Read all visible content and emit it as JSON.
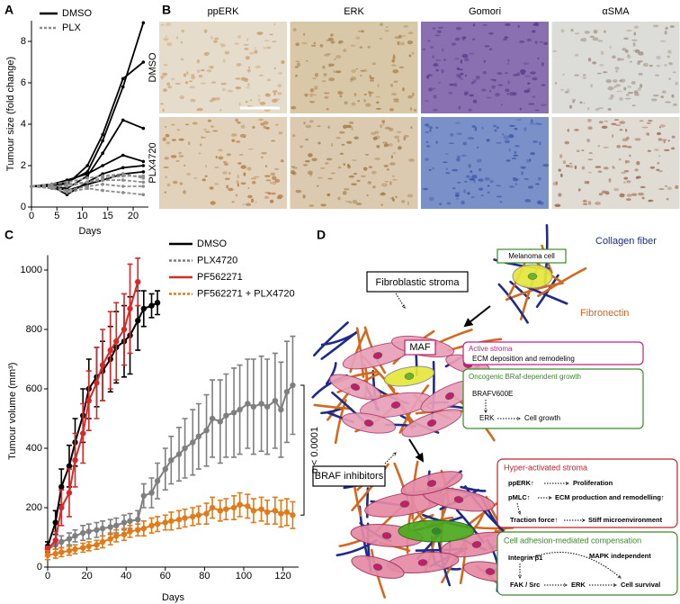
{
  "chart_data": [
    {
      "panel": "A",
      "type": "line",
      "xlabel": "Days",
      "ylabel": "Tumour size (fold change)",
      "x": [
        0,
        4,
        7,
        11,
        14,
        18,
        22
      ],
      "xlim": [
        0,
        23
      ],
      "xticks": [
        0,
        5,
        10,
        15,
        20
      ],
      "ylim": [
        0,
        9
      ],
      "yticks": [
        0,
        2,
        4,
        6,
        8
      ],
      "series": [
        {
          "name": "DMSO",
          "color": "#000000",
          "dashed": false,
          "lines": [
            [
              1,
              1,
              1.2,
              1.7,
              3.2,
              5.8,
              8.9
            ],
            [
              1,
              1.1,
              1.1,
              2.0,
              3.5,
              6.2,
              7.0
            ],
            [
              1,
              1,
              0.9,
              1.5,
              2.6,
              4.2,
              3.8
            ],
            [
              1,
              1.1,
              1.3,
              1.6,
              2.0,
              2.5,
              2.2
            ],
            [
              1,
              1,
              0.6,
              1.2,
              1.6,
              1.9,
              2.0
            ],
            [
              1,
              1,
              0.8,
              1.1,
              1.3,
              1.6,
              1.7
            ]
          ]
        },
        {
          "name": "PLX",
          "color": "#8c8c8c",
          "dashed": true,
          "lines": [
            [
              1,
              1,
              1,
              1.2,
              1.4,
              1.5,
              1.5
            ],
            [
              1,
              0.9,
              1.1,
              1.2,
              1.3,
              1.3,
              1.2
            ],
            [
              1,
              1,
              0.8,
              1,
              1.1,
              1.0,
              1.0
            ],
            [
              1,
              0.9,
              0.7,
              0.9,
              0.8,
              0.7,
              0.6
            ],
            [
              1,
              1.1,
              1.2,
              1.4,
              1.5,
              1.6,
              1.4
            ]
          ]
        }
      ]
    },
    {
      "panel": "C",
      "type": "line",
      "xlabel": "Days",
      "ylabel": "Tumour volume (mm³)",
      "annotation": "p < 0.0001",
      "xlim": [
        0,
        128
      ],
      "xticks": [
        0,
        20,
        40,
        60,
        80,
        100,
        120
      ],
      "ylim": [
        0,
        1050
      ],
      "yticks": [
        0,
        200,
        400,
        600,
        800,
        1000
      ],
      "series": [
        {
          "name": "DMSO",
          "color": "#000000",
          "dashed": false,
          "x": [
            0,
            4,
            7,
            11,
            14,
            18,
            21,
            25,
            28,
            32,
            35,
            39,
            42,
            46,
            49,
            53,
            56
          ],
          "values": [
            70,
            150,
            270,
            340,
            420,
            510,
            600,
            640,
            660,
            700,
            740,
            760,
            780,
            830,
            870,
            880,
            890
          ],
          "errors": [
            15,
            40,
            60,
            70,
            80,
            90,
            100,
            100,
            100,
            110,
            120,
            120,
            130,
            100,
            60,
            40,
            40
          ]
        },
        {
          "name": "PLX4720",
          "color": "#7f7f7f",
          "dashed": true,
          "x": [
            0,
            4,
            7,
            11,
            14,
            18,
            21,
            25,
            28,
            32,
            35,
            39,
            42,
            46,
            49,
            53,
            56,
            60,
            63,
            67,
            70,
            74,
            77,
            81,
            84,
            88,
            91,
            95,
            98,
            102,
            105,
            109,
            112,
            116,
            119,
            122,
            125
          ],
          "values": [
            60,
            75,
            85,
            95,
            105,
            115,
            120,
            125,
            130,
            135,
            140,
            150,
            155,
            160,
            240,
            250,
            290,
            330,
            360,
            380,
            400,
            420,
            440,
            460,
            500,
            490,
            510,
            520,
            530,
            550,
            540,
            550,
            540,
            560,
            530,
            590,
            612
          ],
          "errors": [
            10,
            15,
            20,
            20,
            20,
            25,
            25,
            25,
            25,
            25,
            25,
            25,
            25,
            30,
            40,
            50,
            60,
            70,
            80,
            90,
            100,
            110,
            110,
            120,
            130,
            140,
            140,
            150,
            150,
            150,
            160,
            160,
            160,
            160,
            160,
            170,
            165
          ]
        },
        {
          "name": "PF562271",
          "color": "#d42a2a",
          "dashed": false,
          "x": [
            0,
            4,
            7,
            11,
            14,
            18,
            21,
            25,
            28,
            32,
            35,
            39,
            42,
            46
          ],
          "values": [
            60,
            90,
            200,
            250,
            360,
            450,
            560,
            620,
            680,
            730,
            760,
            800,
            870,
            960
          ],
          "errors": [
            10,
            30,
            60,
            80,
            90,
            100,
            100,
            120,
            120,
            130,
            130,
            120,
            150,
            80
          ]
        },
        {
          "name": "PF562271 + PLX4720",
          "color": "#e07b1a",
          "dashed": true,
          "x": [
            0,
            4,
            7,
            11,
            14,
            18,
            21,
            25,
            28,
            32,
            35,
            39,
            42,
            46,
            49,
            53,
            56,
            60,
            63,
            67,
            70,
            74,
            77,
            81,
            84,
            88,
            91,
            95,
            98,
            102,
            105,
            109,
            112,
            116,
            119,
            122,
            125
          ],
          "values": [
            40,
            45,
            50,
            55,
            60,
            65,
            70,
            75,
            85,
            95,
            105,
            110,
            120,
            125,
            130,
            140,
            145,
            150,
            155,
            160,
            165,
            170,
            175,
            180,
            200,
            190,
            195,
            200,
            210,
            205,
            190,
            195,
            185,
            190,
            180,
            185,
            175
          ],
          "errors": [
            15,
            15,
            15,
            15,
            15,
            15,
            15,
            15,
            20,
            20,
            20,
            20,
            20,
            20,
            25,
            25,
            25,
            25,
            30,
            30,
            30,
            30,
            30,
            35,
            35,
            35,
            35,
            40,
            40,
            40,
            40,
            40,
            40,
            45,
            45,
            45,
            45
          ]
        }
      ]
    }
  ],
  "images": {
    "panel": "B",
    "columns": [
      "ppERK",
      "ERK",
      "Gomori",
      "αSMA"
    ],
    "rows": [
      "DMSO",
      "PLX4720"
    ]
  },
  "diagram": {
    "panel": "D",
    "collagen": "Collagen fiber",
    "melanoma": "Melanoma cell",
    "fibroblastic": "Fibroblastic stroma",
    "fibronectin": "Fibronectin",
    "maf": "MAF",
    "active": "Active stroma",
    "ecm": "ECM deposition and remodeling",
    "oncogenic": "Oncogenic BRaf-dependent growth",
    "brafv600e": "BRAFV600E",
    "erk1": "ERK",
    "growth": "Cell growth",
    "inhibitors": "BRAF inhibitors",
    "hyper": "Hyper-activated stroma",
    "pperk": "ppERK↑",
    "prolif": "Proliferation",
    "pmlc": "pMLC↑",
    "ecmprod": "ECM production and remodelling↑",
    "traction": "Traction force↑",
    "stiff": "Stiff microenvironment",
    "adhesion": "Cell adhesion-mediated compensation",
    "integrin": "Integrin β1",
    "mapk": "MAPK independent",
    "fak": "FAK / Src",
    "erk2": "ERK",
    "survival": "Cell survival"
  }
}
